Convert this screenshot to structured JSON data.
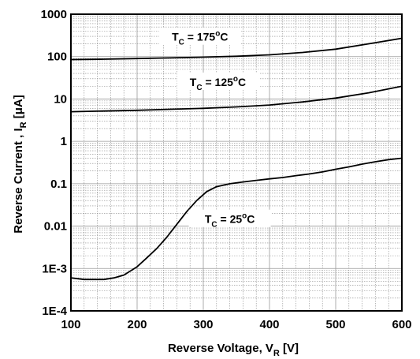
{
  "chart_data": {
    "type": "line",
    "xlabel": "Reverse Voltage, V",
    "xlabel_sub": "R",
    "xlabel_unit": " [V]",
    "ylabel": "Reverse Current , I",
    "ylabel_sub": "R",
    "ylabel_unit": " [μA]",
    "xlim": [
      100,
      600
    ],
    "ylim": [
      0.0001,
      1000
    ],
    "yscale": "log",
    "x_ticks": [
      100,
      200,
      300,
      400,
      500,
      600
    ],
    "x_tick_labels": [
      "100",
      "200",
      "300",
      "400",
      "500",
      "600"
    ],
    "y_ticks": [
      0.0001,
      0.001,
      0.01,
      0.1,
      1,
      10,
      100,
      1000
    ],
    "y_tick_labels": [
      "1E-4",
      "1E-3",
      "0.01",
      "0.1",
      "1",
      "10",
      "100",
      "1000"
    ],
    "grid": true,
    "series": [
      {
        "x": [
          100,
          120,
          140,
          150,
          165,
          180,
          200,
          215,
          230,
          245,
          260,
          275,
          290,
          305,
          320,
          340,
          360,
          380,
          400,
          420,
          440,
          460,
          480,
          500,
          520,
          540,
          560,
          580,
          600
        ],
        "y": [
          0.0006,
          0.00055,
          0.00055,
          0.00055,
          0.0006,
          0.0007,
          0.0011,
          0.0018,
          0.003,
          0.0055,
          0.011,
          0.022,
          0.04,
          0.065,
          0.085,
          0.1,
          0.11,
          0.12,
          0.13,
          0.14,
          0.155,
          0.17,
          0.19,
          0.22,
          0.25,
          0.29,
          0.33,
          0.37,
          0.4
        ]
      },
      {
        "x": [
          100,
          150,
          200,
          250,
          300,
          350,
          400,
          450,
          500,
          550,
          600
        ],
        "y": [
          5,
          5.2,
          5.4,
          5.7,
          6,
          6.5,
          7.2,
          8.5,
          10.5,
          14,
          20
        ]
      },
      {
        "x": [
          100,
          150,
          200,
          250,
          300,
          350,
          400,
          450,
          500,
          550,
          600
        ],
        "y": [
          85,
          87,
          90,
          93,
          97,
          102,
          110,
          125,
          150,
          200,
          270
        ]
      }
    ],
    "annotations": [
      {
        "label_main": "T",
        "label_sub": "C",
        "label_rest": " = 175",
        "label_sup": "o",
        "label_end": "C",
        "x": 295,
        "y": 280
      },
      {
        "label_main": "T",
        "label_sub": "C",
        "label_rest": " = 125",
        "label_sup": "o",
        "label_end": "C",
        "x": 322,
        "y": 24
      },
      {
        "label_main": "T",
        "label_sub": "C",
        "label_rest": " = 25",
        "label_sup": "o",
        "label_end": "C",
        "x": 340,
        "y": 0.014
      }
    ]
  }
}
